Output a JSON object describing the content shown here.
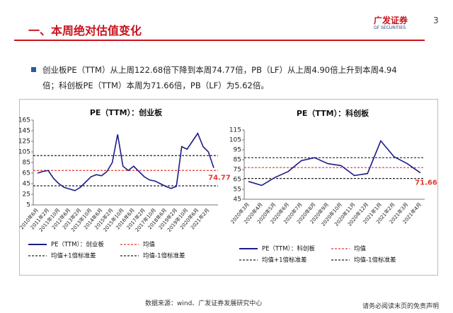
{
  "header": {
    "title": "一、本周绝对估值变化",
    "logo": "广发证券",
    "logo_en": "GF SECURITIES",
    "page": "3"
  },
  "bullet": "创业板PE（TTM）从上周122.68倍下降到本周74.77倍，PB（LF）从上周4.90倍上升到本周4.94倍；科创板PE（TTM）本周为71.66倍，PB（LF）为5.62倍。",
  "footer": {
    "source": "数据来源：wind、广发证券发展研究中心",
    "disclaimer": "请务必阅读末页的免责声明"
  },
  "chart_data": [
    {
      "type": "line",
      "title": "PE（TTM）：创业板",
      "categories": [
        "2010年6月",
        null,
        "2011年2月",
        null,
        "2011年10月",
        null,
        "2012年6月",
        null,
        "2013年2月",
        null,
        "2013年10月",
        null,
        "2014年6月",
        null,
        "2015年2月",
        null,
        "2015年10月",
        null,
        "2016年6月",
        null,
        "2017年2月",
        null,
        "2017年10月",
        null,
        "2018年6月",
        null,
        "2019年2月",
        null,
        "2019年10月",
        null,
        "2020年6月",
        null,
        "2021年2月",
        null
      ],
      "series": [
        {
          "name": "PE（TTM）：创业板",
          "color": "#1c1c8a",
          "values": [
            65,
            68,
            70,
            55,
            45,
            38,
            35,
            32,
            38,
            48,
            58,
            62,
            60,
            68,
            85,
            138,
            78,
            70,
            78,
            68,
            58,
            52,
            50,
            45,
            40,
            36,
            40,
            115,
            110,
            125,
            140,
            115,
            105,
            74.77
          ]
        }
      ],
      "hlines": [
        {
          "name": "均值",
          "value": 70,
          "color": "#e8362d"
        },
        {
          "name": "均值+1倍标准差",
          "value": 98,
          "color": "#222222"
        },
        {
          "name": "均值-1倍标准差",
          "value": 41,
          "color": "#222222"
        }
      ],
      "ylim": [
        5,
        165
      ],
      "yticks": [
        5,
        25,
        45,
        65,
        85,
        105,
        125,
        145,
        165
      ]
    },
    {
      "type": "line",
      "title": "PE（TTM）：科创板",
      "categories": [
        "2020年3月",
        "2020年4月",
        "2020年5月",
        "2020年6月",
        "2020年7月",
        "2020年8月",
        "2020年9月",
        "2020年10月",
        "2020年11月",
        "2020年12月",
        "2021年1月",
        "2021年2月",
        "2021年3月",
        "2021年4月"
      ],
      "series": [
        {
          "name": "PE（TTM）：科创板",
          "color": "#1c1c8a",
          "values": [
            63,
            59,
            67,
            73,
            84,
            87,
            81,
            79,
            69,
            71,
            104,
            88,
            81,
            71.66
          ]
        }
      ],
      "hlines": [
        {
          "name": "均值",
          "value": 77,
          "color": "#e8362d"
        },
        {
          "name": "均值+1倍标准差",
          "value": 87,
          "color": "#222222"
        },
        {
          "name": "均值-1倍标准差",
          "value": 66,
          "color": "#222222"
        }
      ],
      "ylim": [
        45,
        115
      ],
      "yticks": [
        45,
        55,
        65,
        75,
        85,
        95,
        105,
        115
      ]
    }
  ]
}
